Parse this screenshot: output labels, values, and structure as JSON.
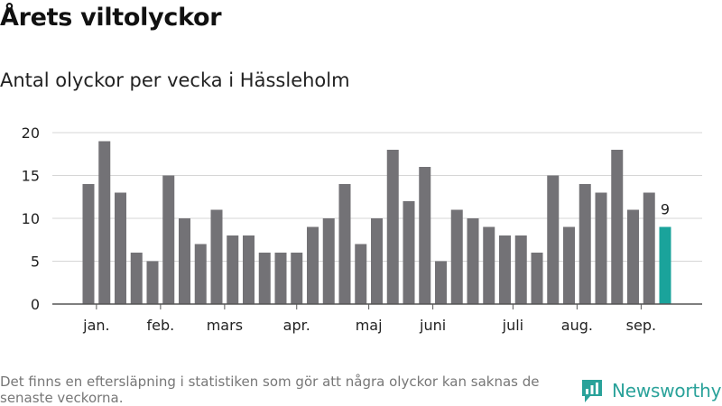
{
  "title": "Årets viltolyckor",
  "subtitle": "Antal olyckor per vecka i Hässleholm",
  "footnote": "Det finns en eftersläpning i statistiken som gör att några olyckor kan saknas de senaste veckorna.",
  "brand": {
    "name": "Newsworthy",
    "icon": "newsworthy-logo-icon",
    "color": "#2aa29a"
  },
  "chart_data": {
    "type": "bar",
    "title": "Årets viltolyckor",
    "subtitle": "Antal olyckor per vecka i Hässleholm",
    "ylim": [
      0,
      20
    ],
    "yticks": [
      0,
      5,
      10,
      15,
      20
    ],
    "grid": true,
    "bar_color": "#737276",
    "highlight_color": "#1aa39b",
    "highlight_index": 36,
    "highlight_label": "9",
    "values": [
      14,
      19,
      13,
      6,
      5,
      15,
      10,
      7,
      11,
      8,
      8,
      6,
      6,
      6,
      9,
      10,
      14,
      7,
      10,
      18,
      12,
      16,
      5,
      11,
      10,
      9,
      8,
      8,
      6,
      15,
      9,
      14,
      13,
      18,
      11,
      13,
      9
    ],
    "month_labels": [
      {
        "label": "jan.",
        "index": 0.5
      },
      {
        "label": "feb.",
        "index": 4.5
      },
      {
        "label": "mars",
        "index": 8.5
      },
      {
        "label": "apr.",
        "index": 13
      },
      {
        "label": "maj",
        "index": 17.5
      },
      {
        "label": "juni",
        "index": 21.5
      },
      {
        "label": "juli",
        "index": 26.5
      },
      {
        "label": "aug.",
        "index": 30.5
      },
      {
        "label": "sep.",
        "index": 34.5
      }
    ]
  }
}
